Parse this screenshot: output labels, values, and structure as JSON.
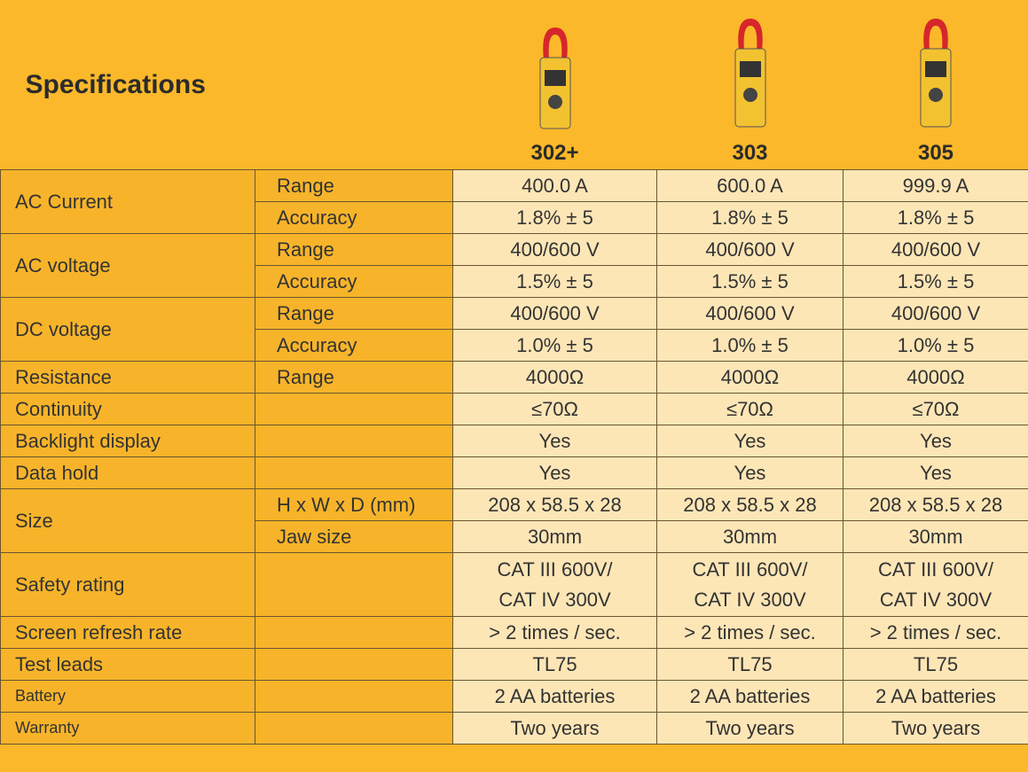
{
  "header": {
    "title": "Specifications",
    "models": [
      "302+",
      "303",
      "305"
    ]
  },
  "table": {
    "groups": [
      {
        "label": "AC Current",
        "rows": [
          {
            "label": "Range",
            "values": [
              "400.0 A",
              "600.0 A",
              "999.9 A"
            ]
          },
          {
            "label": "Accuracy",
            "values": [
              "1.8% ± 5",
              "1.8% ± 5",
              "1.8% ± 5"
            ]
          }
        ]
      },
      {
        "label": "AC voltage",
        "rows": [
          {
            "label": "Range",
            "values": [
              "400/600 V",
              "400/600 V",
              "400/600 V"
            ]
          },
          {
            "label": "Accuracy",
            "values": [
              "1.5% ± 5",
              "1.5% ± 5",
              "1.5% ± 5"
            ]
          }
        ]
      },
      {
        "label": "DC voltage",
        "rows": [
          {
            "label": "Range",
            "values": [
              "400/600 V",
              "400/600 V",
              "400/600 V"
            ]
          },
          {
            "label": "Accuracy",
            "values": [
              "1.0% ± 5",
              "1.0% ± 5",
              "1.0% ± 5"
            ]
          }
        ]
      },
      {
        "label": "Resistance",
        "rows": [
          {
            "label": "Range",
            "values": [
              "4000Ω",
              "4000Ω",
              "4000Ω"
            ]
          }
        ]
      },
      {
        "label": "Continuity",
        "rows": [
          {
            "values": [
              "≤70Ω",
              "≤70Ω",
              "≤70Ω"
            ]
          }
        ]
      },
      {
        "label": "Backlight display",
        "rows": [
          {
            "values": [
              "Yes",
              "Yes",
              "Yes"
            ]
          }
        ]
      },
      {
        "label": "Data hold",
        "rows": [
          {
            "values": [
              "Yes",
              "Yes",
              "Yes"
            ]
          }
        ]
      },
      {
        "label": "Size",
        "rows": [
          {
            "label": "H x W x D (mm)",
            "values": [
              "208 x 58.5 x 28",
              "208 x 58.5 x 28",
              "208 x 58.5 x 28"
            ]
          },
          {
            "label": "Jaw size",
            "values": [
              "30mm",
              "30mm",
              "30mm"
            ]
          }
        ]
      },
      {
        "label": "Safety rating",
        "rows": [
          {
            "values": [
              [
                "CAT III 600V/",
                "CAT IV 300V"
              ],
              [
                "CAT III 600V/",
                "CAT IV 300V"
              ],
              [
                "CAT III 600V/",
                "CAT IV 300V"
              ]
            ]
          }
        ]
      },
      {
        "label": "Screen refresh rate",
        "rows": [
          {
            "values": [
              "> 2 times / sec.",
              "> 2 times / sec.",
              "> 2 times / sec."
            ]
          }
        ]
      },
      {
        "label": "Test leads",
        "rows": [
          {
            "values": [
              "TL75",
              "TL75",
              "TL75"
            ]
          }
        ]
      },
      {
        "label": "Battery",
        "rows": [
          {
            "values": [
              "2 AA batteries",
              "2 AA batteries",
              "2 AA batteries"
            ]
          }
        ]
      },
      {
        "label": "Warranty",
        "rows": [
          {
            "values": [
              "Two years",
              "Two years",
              "Two years"
            ]
          }
        ]
      }
    ]
  }
}
